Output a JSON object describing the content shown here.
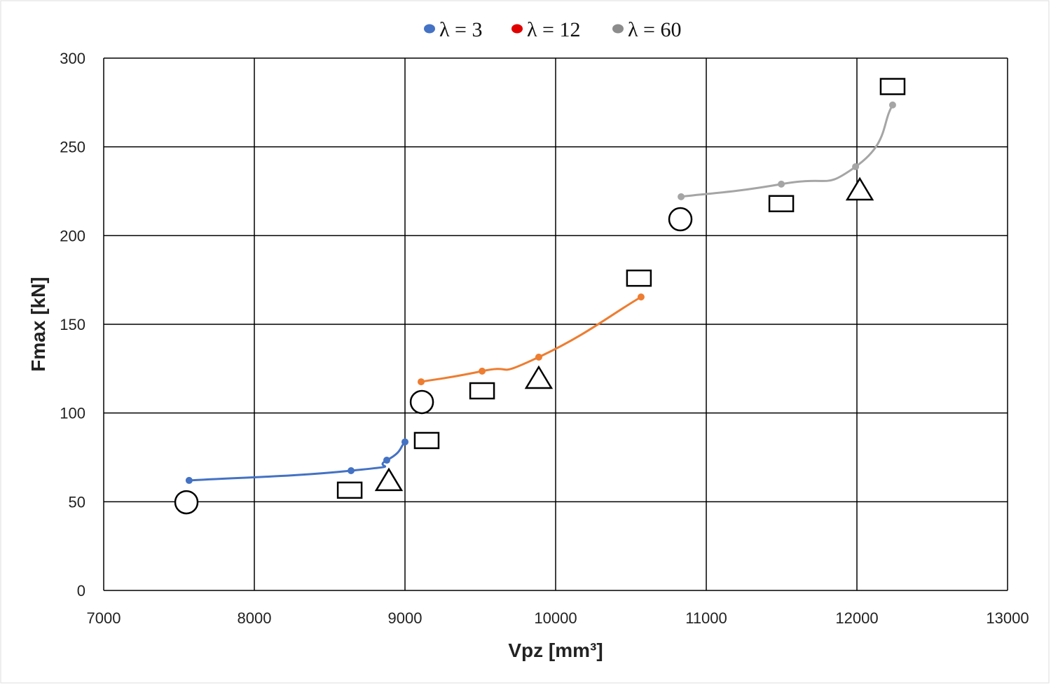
{
  "chart_data": {
    "type": "line",
    "title": "",
    "xlabel": "Vpz [mm³]",
    "ylabel": "Fmax [kN]",
    "xlim": [
      7000,
      13000
    ],
    "ylim": [
      0,
      300
    ],
    "xticks": [
      7000,
      8000,
      9000,
      10000,
      11000,
      12000,
      13000
    ],
    "yticks": [
      0,
      50,
      100,
      150,
      200,
      250,
      300
    ],
    "grid": true,
    "legend_position": "top-center",
    "legend": [
      {
        "label": "λ = 3",
        "color": "#4472C4"
      },
      {
        "label": "λ = 12",
        "color": "#E00000"
      },
      {
        "label": "λ = 60",
        "color": "#8C8C8C"
      }
    ],
    "series": [
      {
        "name": "λ = 3",
        "color": "#4472C4",
        "x": [
          7567,
          8642,
          8879,
          9000
        ],
        "y": [
          62,
          67.5,
          73.4,
          83.7
        ]
      },
      {
        "name": "λ = 12",
        "color": "#ED7D31",
        "x": [
          9107,
          9512,
          9888,
          10567
        ],
        "y": [
          117.6,
          123.6,
          131.5,
          165.4
        ]
      },
      {
        "name": "λ = 60",
        "color": "#A5A5A5",
        "x": [
          10833,
          11498,
          11991,
          12237
        ],
        "y": [
          221.9,
          229,
          238.8,
          273.6
        ]
      }
    ],
    "markers": {
      "circle": {
        "x": [
          7549,
          9112,
          10828
        ],
        "y": [
          49.7,
          106.2,
          209.2
        ]
      },
      "square": {
        "x": [
          8633,
          9144,
          9512,
          10553,
          11498,
          12237
        ],
        "y": [
          56.5,
          84.5,
          112.5,
          176,
          218,
          284
        ]
      },
      "triangle": {
        "x": [
          8893,
          9888,
          12019
        ],
        "y": [
          62,
          119.6,
          225.8
        ]
      }
    }
  }
}
